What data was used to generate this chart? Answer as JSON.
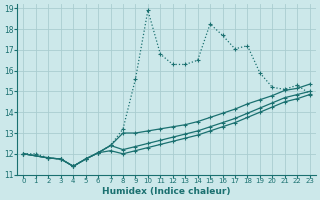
{
  "xlabel": "Humidex (Indice chaleur)",
  "bg_color": "#cce8ea",
  "grid_color": "#aacdd0",
  "line_color": "#1a7070",
  "xlim": [
    -0.5,
    23.5
  ],
  "ylim": [
    11,
    19.2
  ],
  "xticks": [
    0,
    1,
    2,
    3,
    4,
    5,
    6,
    7,
    8,
    9,
    10,
    11,
    12,
    13,
    14,
    15,
    16,
    17,
    18,
    19,
    20,
    21,
    22,
    23
  ],
  "yticks": [
    11,
    12,
    13,
    14,
    15,
    16,
    17,
    18,
    19
  ],
  "line_dotted": {
    "x": [
      0,
      1,
      2,
      3,
      4,
      5,
      6,
      7,
      8,
      9,
      10,
      11,
      12,
      13,
      14,
      15,
      16,
      17,
      18,
      19,
      20,
      21,
      22,
      23
    ],
    "y": [
      12,
      12,
      11.8,
      11.75,
      11.4,
      11.75,
      12.05,
      12.4,
      13.2,
      15.6,
      18.9,
      16.8,
      16.3,
      16.3,
      16.5,
      18.25,
      17.7,
      17.05,
      17.2,
      15.9,
      15.2,
      15.1,
      15.3,
      14.9
    ]
  },
  "line_solid_1": {
    "x": [
      0,
      2,
      3,
      4,
      5,
      6,
      7,
      8,
      9,
      10,
      11,
      12,
      13,
      14,
      15,
      16,
      17,
      18,
      19,
      20,
      21,
      22,
      23
    ],
    "y": [
      12,
      11.8,
      11.75,
      11.4,
      11.75,
      12.05,
      12.4,
      13.0,
      13.0,
      13.1,
      13.2,
      13.3,
      13.4,
      13.55,
      13.75,
      13.95,
      14.15,
      14.4,
      14.6,
      14.8,
      15.05,
      15.15,
      15.35
    ]
  },
  "line_solid_2": {
    "x": [
      0,
      2,
      3,
      4,
      5,
      6,
      7,
      8,
      9,
      10,
      11,
      12,
      13,
      14,
      15,
      16,
      17,
      18,
      19,
      20,
      21,
      22,
      23
    ],
    "y": [
      12,
      11.8,
      11.75,
      11.4,
      11.75,
      12.05,
      12.4,
      12.2,
      12.35,
      12.5,
      12.65,
      12.8,
      12.95,
      13.1,
      13.3,
      13.5,
      13.7,
      13.95,
      14.2,
      14.45,
      14.7,
      14.85,
      15.0
    ]
  },
  "line_solid_3": {
    "x": [
      0,
      2,
      3,
      4,
      5,
      6,
      7,
      8,
      9,
      10,
      11,
      12,
      13,
      14,
      15,
      16,
      17,
      18,
      19,
      20,
      21,
      22,
      23
    ],
    "y": [
      12,
      11.8,
      11.75,
      11.4,
      11.75,
      12.05,
      12.15,
      12.0,
      12.15,
      12.3,
      12.45,
      12.6,
      12.75,
      12.9,
      13.1,
      13.3,
      13.5,
      13.75,
      14.0,
      14.25,
      14.5,
      14.65,
      14.85
    ]
  }
}
